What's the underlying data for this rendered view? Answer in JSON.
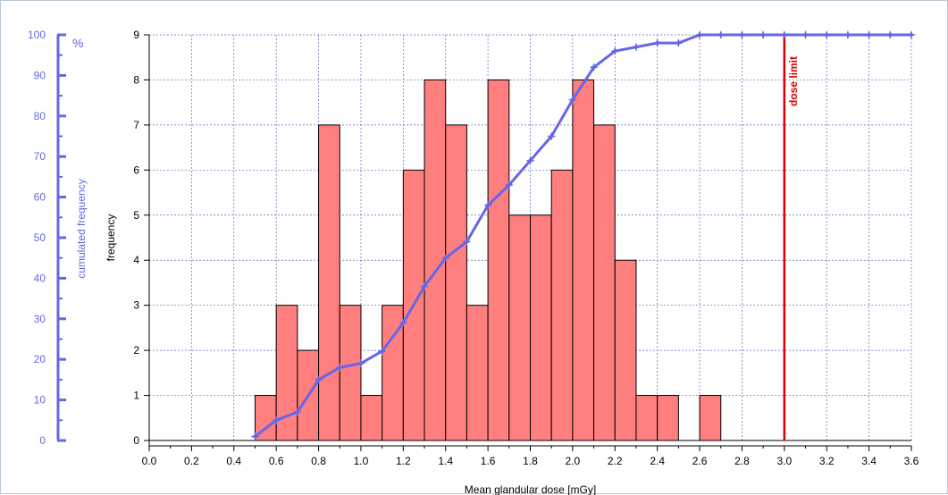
{
  "chart_data": {
    "type": "bar",
    "xlabel": "Mean glandular dose [mGy]",
    "ylabel": "frequency",
    "y2label": "cumulated frequency",
    "y2unit": "%",
    "xlim": [
      0.0,
      3.6
    ],
    "ylim": [
      0,
      9
    ],
    "y2lim": [
      0,
      100
    ],
    "x_ticks": [
      "0.0",
      "0.2",
      "0.4",
      "0.6",
      "0.8",
      "1.0",
      "1.2",
      "1.4",
      "1.6",
      "1.8",
      "2.0",
      "2.2",
      "2.4",
      "2.6",
      "2.8",
      "3.0",
      "3.2",
      "3.4",
      "3.6"
    ],
    "y_ticks": [
      "0",
      "1",
      "2",
      "3",
      "4",
      "5",
      "6",
      "7",
      "8",
      "9"
    ],
    "y2_ticks": [
      "0",
      "10",
      "20",
      "30",
      "40",
      "50",
      "60",
      "70",
      "80",
      "90",
      "100"
    ],
    "grid": true,
    "bin_width": 0.1,
    "bins": [
      {
        "x0": 0.5,
        "value": 1
      },
      {
        "x0": 0.6,
        "value": 3
      },
      {
        "x0": 0.7,
        "value": 2
      },
      {
        "x0": 0.8,
        "value": 7
      },
      {
        "x0": 0.9,
        "value": 3
      },
      {
        "x0": 1.0,
        "value": 1
      },
      {
        "x0": 1.1,
        "value": 3
      },
      {
        "x0": 1.2,
        "value": 6
      },
      {
        "x0": 1.3,
        "value": 8
      },
      {
        "x0": 1.4,
        "value": 7
      },
      {
        "x0": 1.5,
        "value": 3
      },
      {
        "x0": 1.6,
        "value": 8
      },
      {
        "x0": 1.7,
        "value": 5
      },
      {
        "x0": 1.8,
        "value": 5
      },
      {
        "x0": 1.9,
        "value": 6
      },
      {
        "x0": 2.0,
        "value": 8
      },
      {
        "x0": 2.1,
        "value": 7
      },
      {
        "x0": 2.2,
        "value": 4
      },
      {
        "x0": 2.3,
        "value": 1
      },
      {
        "x0": 2.4,
        "value": 1
      },
      {
        "x0": 2.5,
        "value": 0
      },
      {
        "x0": 2.6,
        "value": 1
      }
    ],
    "cumulative": {
      "x": [
        0.5,
        0.6,
        0.7,
        0.8,
        0.9,
        1.0,
        1.1,
        1.2,
        1.3,
        1.4,
        1.5,
        1.6,
        1.7,
        1.8,
        1.9,
        2.0,
        2.1,
        2.2,
        2.3,
        2.4,
        2.5,
        2.6,
        2.7,
        2.8,
        2.9,
        3.0,
        3.1,
        3.2,
        3.3,
        3.4,
        3.5,
        3.6
      ],
      "y": [
        1,
        5,
        7,
        15,
        18,
        19,
        22,
        29,
        38,
        45,
        49,
        58,
        63,
        69,
        75,
        84,
        92,
        96,
        97,
        98,
        98,
        100,
        100,
        100,
        100,
        100,
        100,
        100,
        100,
        100,
        100,
        100
      ]
    },
    "annotations": [
      {
        "x": 3.0,
        "label": "dose limit",
        "color": "#dd0000"
      }
    ],
    "colors": {
      "bar_fill": "#ff7f7f",
      "bar_stroke": "#000000",
      "cumulative_line": "#6666e6",
      "grid": "#5e67b8",
      "dose_limit": "#dd0000"
    }
  }
}
